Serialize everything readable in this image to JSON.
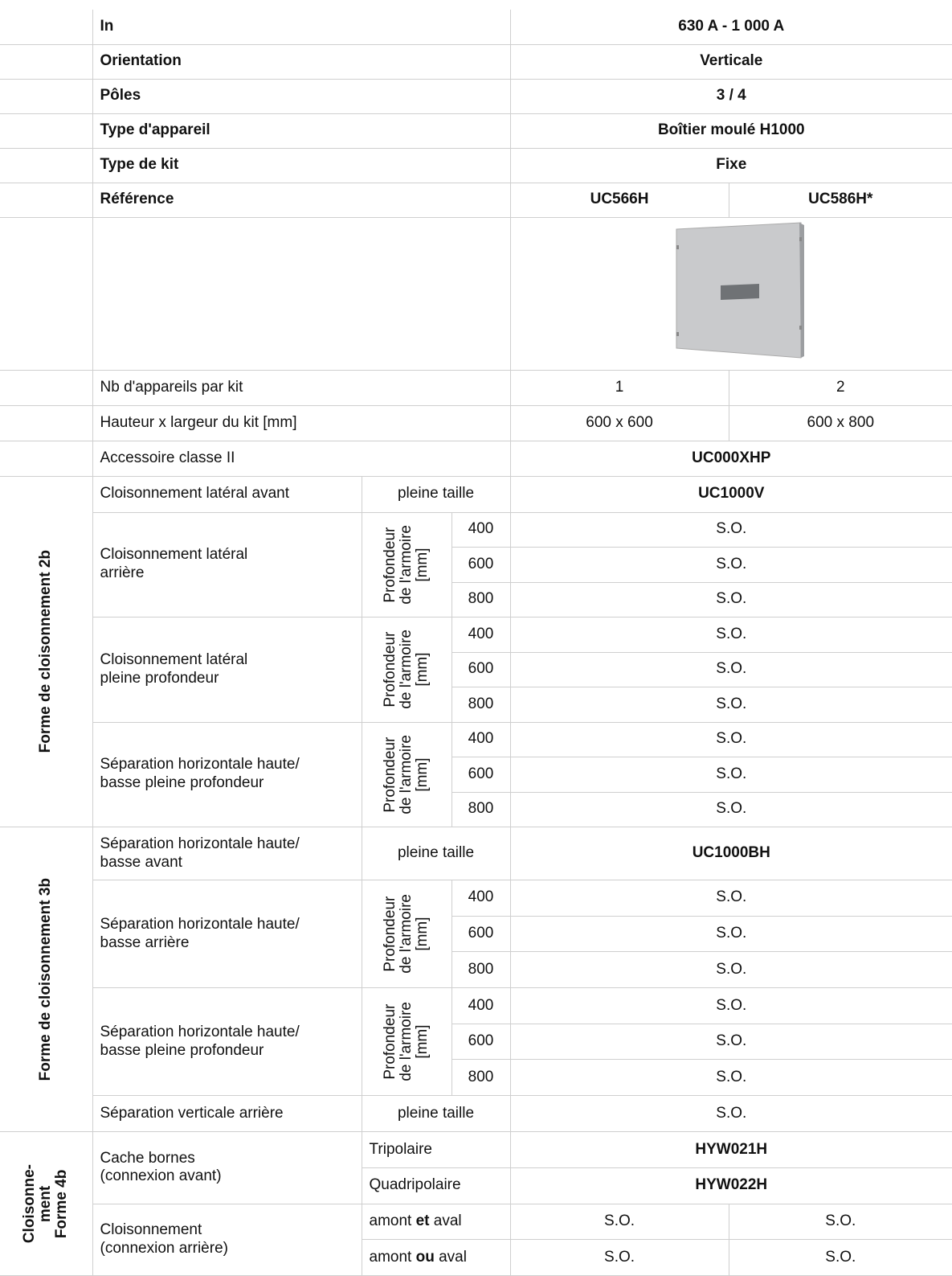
{
  "header_rows": [
    {
      "label": "In",
      "value": "630 A - 1 000 A"
    },
    {
      "label": "Orientation",
      "value": "Verticale"
    },
    {
      "label": "Pôles",
      "value": "3 / 4"
    },
    {
      "label": "Type d'appareil",
      "value": "Boîtier moulé H1000"
    },
    {
      "label": "Type de kit",
      "value": "Fixe"
    },
    {
      "label": "Référence",
      "values": [
        "UC566H",
        "UC586H*"
      ]
    }
  ],
  "spec_rows": [
    {
      "label": "Nb d'appareils par kit",
      "values": [
        "1",
        "2"
      ]
    },
    {
      "label": "Hauteur x largeur du kit [mm]",
      "values": [
        "600 x 600",
        "600 x 800"
      ]
    },
    {
      "label": "Accessoire classe II",
      "reference": "UC000XHP"
    }
  ],
  "groups": [
    {
      "title": "Forme de cloisonnement 2b",
      "items": [
        {
          "label": "Cloisonnement latéral avant",
          "condition": "pleine taille",
          "reference": "UC1000V"
        },
        {
          "label": "Cloisonnement latéral\narrière",
          "condition": "Profondeur\nde l'armoire\n[mm]",
          "depths": [
            "400",
            "600",
            "800"
          ],
          "values": [
            "S.O.",
            "S.O.",
            "S.O."
          ]
        },
        {
          "label": "Cloisonnement latéral\npleine profondeur",
          "condition": "Profondeur\nde l'armoire\n[mm]",
          "depths": [
            "400",
            "600",
            "800"
          ],
          "values": [
            "S.O.",
            "S.O.",
            "S.O."
          ]
        },
        {
          "label": "Séparation horizontale haute/\nbasse pleine profondeur",
          "condition": "Profondeur\nde l'armoire\n[mm]",
          "depths": [
            "400",
            "600",
            "800"
          ],
          "values": [
            "S.O.",
            "S.O.",
            "S.O."
          ]
        }
      ]
    },
    {
      "title": "Forme de cloisonnement 3b",
      "items": [
        {
          "label": "Séparation horizontale haute/\nbasse avant",
          "condition": "pleine taille",
          "reference": "UC1000BH",
          "tall": true
        },
        {
          "label": "Séparation horizontale haute/\nbasse arrière",
          "condition": "Profondeur\nde l'armoire\n[mm]",
          "depths": [
            "400",
            "600",
            "800"
          ],
          "values": [
            "S.O.",
            "S.O.",
            "S.O."
          ]
        },
        {
          "label": "Séparation horizontale haute/\nbasse pleine profondeur",
          "condition": "Profondeur\nde l'armoire\n[mm]",
          "depths": [
            "400",
            "600",
            "800"
          ],
          "values": [
            "S.O.",
            "S.O.",
            "S.O."
          ]
        },
        {
          "label": "Séparation verticale arrière",
          "condition": "pleine taille",
          "value": "S.O."
        }
      ]
    },
    {
      "title": "Cloisonne-\nment\nForme 4b",
      "items": [
        {
          "label": "Cache bornes\n(connexion avant)",
          "options": [
            {
              "condition": "Tripolaire",
              "reference": "HYW021H"
            },
            {
              "condition": "Quadripolaire",
              "reference": "HYW022H"
            }
          ]
        },
        {
          "label": "Cloisonnement\n(connexion arrière)",
          "options": [
            {
              "condition": [
                "amont",
                "et",
                "aval"
              ],
              "values": [
                "S.O.",
                "S.O."
              ]
            },
            {
              "condition": [
                "amont",
                "ou",
                "aval"
              ],
              "values": [
                "S.O.",
                "S.O."
              ]
            }
          ]
        }
      ]
    }
  ]
}
